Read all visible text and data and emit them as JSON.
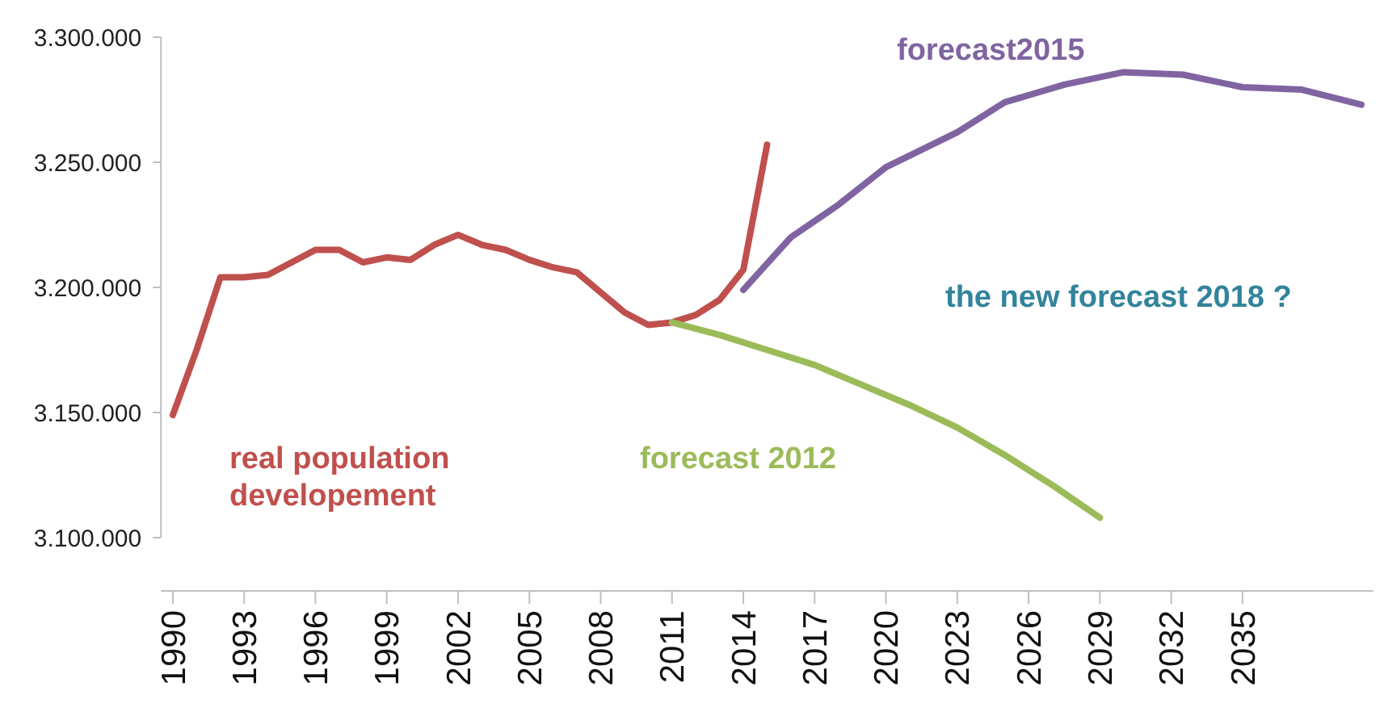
{
  "chart_data": {
    "type": "line",
    "annotations": [
      "the new forecast 2018 ?"
    ],
    "xlim": [
      1989.5,
      2040.5
    ],
    "xticks": [
      1990,
      1993,
      1996,
      1999,
      2002,
      2005,
      2008,
      2011,
      2014,
      2017,
      2020,
      2023,
      2026,
      2029,
      2032,
      2035
    ],
    "ylim": [
      3100000,
      3300000
    ],
    "yticks": [
      {
        "value": 3100000,
        "label": "3.100.000"
      },
      {
        "value": 3150000,
        "label": "3.150.000"
      },
      {
        "value": 3200000,
        "label": "3.200.000"
      },
      {
        "value": 3250000,
        "label": "3.250.000"
      },
      {
        "value": 3300000,
        "label": "3.300.000"
      }
    ],
    "grid": false,
    "marker": "none",
    "line_style": "solid",
    "series": [
      {
        "name": "real population developement",
        "color": "#c0504d",
        "x": [
          1990,
          1991,
          1992,
          1993,
          1994,
          1995,
          1996,
          1997,
          1998,
          1999,
          2000,
          2001,
          2002,
          2003,
          2004,
          2005,
          2006,
          2007,
          2008,
          2009,
          2010,
          2011,
          2012,
          2013,
          2014,
          2015
        ],
        "values": [
          3149000,
          3175000,
          3204000,
          3204000,
          3205000,
          3210000,
          3215000,
          3215000,
          3210000,
          3212000,
          3211000,
          3217000,
          3221000,
          3217000,
          3215000,
          3211000,
          3208000,
          3206000,
          3198000,
          3190000,
          3185000,
          3186000,
          3189000,
          3195000,
          3207000,
          3257000
        ]
      },
      {
        "name": "forecast 2012",
        "color": "#9bbb59",
        "x": [
          2011,
          2013,
          2015,
          2017,
          2019,
          2021,
          2023,
          2025,
          2027,
          2029
        ],
        "values": [
          3186000,
          3181000,
          3175000,
          3169000,
          3161000,
          3153000,
          3144000,
          3133000,
          3121000,
          3108000
        ]
      },
      {
        "name": "forecast2015",
        "color": "#8064a2",
        "x": [
          2014,
          2016,
          2018,
          2020,
          2023,
          2025,
          2027.5,
          2030,
          2032.5,
          2035,
          2037.5,
          2040
        ],
        "values": [
          3199000,
          3220000,
          3233000,
          3248000,
          3262000,
          3274000,
          3281000,
          3286000,
          3285000,
          3280000,
          3279000,
          3273000
        ]
      }
    ]
  }
}
